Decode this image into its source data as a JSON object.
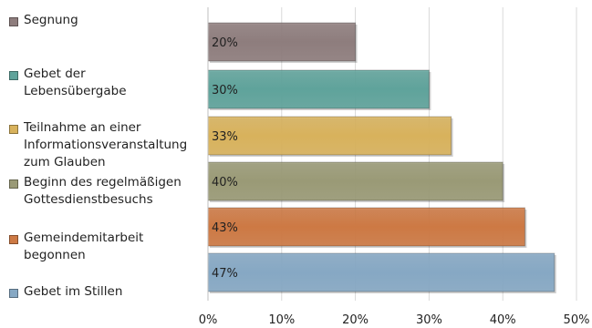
{
  "chart_data": {
    "type": "bar",
    "orientation": "horizontal",
    "categories": [
      "Segnung",
      "Gebet der\nLebensübergabe",
      "Teilnahme an einer\nInformationsveranstaltung\nzum Glauben",
      "Beginn des regelmäßigen\nGottesdienstbesuchs",
      "Gemeindemitarbeit\nbegonnen",
      "Gebet im Stillen"
    ],
    "values": [
      20,
      30,
      33,
      40,
      43,
      47
    ],
    "data_labels": [
      "20%",
      "30%",
      "33%",
      "40%",
      "43%",
      "47%"
    ],
    "colors": [
      "#8e7d7d",
      "#5fa39b",
      "#d8b25c",
      "#9a9a76",
      "#cd7944",
      "#86a8c4"
    ],
    "xlim": [
      0,
      50
    ],
    "x_ticks": [
      "0%",
      "10%",
      "20%",
      "30%",
      "40%",
      "50%"
    ],
    "grid": "vertical",
    "legend": "left"
  }
}
